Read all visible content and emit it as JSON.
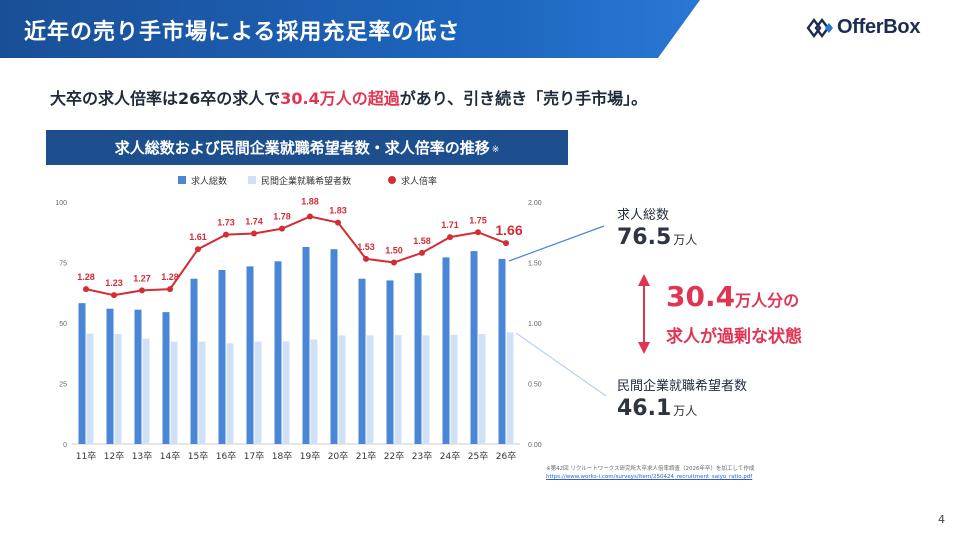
{
  "header": {
    "title": "近年の売り手市場による採用充足率の低さ"
  },
  "logo": {
    "text": "OfferBox"
  },
  "lead": {
    "before": "大卒の求人倍率は26卒の求人で",
    "highlight": "30.4万人の超過",
    "after": "があり、引き続き「売り手市場」。"
  },
  "chart_title": {
    "text": "求人総数および民間企業就職希望者数・求人倍率の推移",
    "note": "※"
  },
  "annotations": {
    "total": {
      "label": "求人総数",
      "value": "76.5",
      "unit": "万人"
    },
    "applicants": {
      "label": "民間企業就職希望者数",
      "value": "46.1",
      "unit": "万人"
    },
    "surplus": {
      "value": "30.4",
      "unit": "万人分の",
      "line2": "求人が過剰な状態"
    }
  },
  "source": {
    "note": "※第42回 リクルートワークス研究所大卒求人倍率調査（2026年卒）を加工して作成",
    "url": "https://www.works-i.com/surveys/item/250424_recruitment_saiyo_ratio.pdf"
  },
  "page_number": "4",
  "colors": {
    "header": "#1d66bf",
    "bar_total": "#4a86d6",
    "bar_applicants": "#d0e1f5",
    "ratio_line": "#d32d35",
    "highlight": "#e03552"
  },
  "chart_data": {
    "type": "bar+line",
    "categories": [
      "11卒",
      "12卒",
      "13卒",
      "14卒",
      "15卒",
      "16卒",
      "17卒",
      "18卒",
      "19卒",
      "20卒",
      "21卒",
      "22卒",
      "23卒",
      "24卒",
      "25卒",
      "26卒"
    ],
    "series": [
      {
        "name": "求人総数",
        "type": "bar",
        "axis": "left",
        "values": [
          58.2,
          55.9,
          55.5,
          54.5,
          68.3,
          71.9,
          73.4,
          75.5,
          81.4,
          80.5,
          68.3,
          67.6,
          70.6,
          77.1,
          79.7,
          76.5
        ]
      },
      {
        "name": "民間企業就職希望者数",
        "type": "bar",
        "axis": "left",
        "values": [
          45.6,
          45.5,
          43.5,
          42.3,
          42.3,
          41.6,
          42.3,
          42.4,
          43.2,
          44.9,
          44.9,
          45.0,
          44.9,
          45.1,
          45.5,
          46.1
        ]
      },
      {
        "name": "求人倍率",
        "type": "line",
        "axis": "right",
        "values": [
          1.28,
          1.23,
          1.27,
          1.28,
          1.61,
          1.73,
          1.74,
          1.78,
          1.88,
          1.83,
          1.53,
          1.5,
          1.58,
          1.71,
          1.75,
          1.66
        ]
      }
    ],
    "ratio_labels": [
      "1.28",
      "1.23",
      "1.27",
      "1.28",
      "1.61",
      "1.73",
      "1.74",
      "1.78",
      "1.88",
      "1.83",
      "1.53",
      "1.50",
      "1.58",
      "1.71",
      "1.75",
      "1.66"
    ],
    "left_axis": {
      "ticks": [
        "0",
        "25",
        "50",
        "75",
        "100"
      ],
      "ylim": [
        0,
        100
      ]
    },
    "right_axis": {
      "ticks": [
        "0.00",
        "0.50",
        "1.00",
        "1.50",
        "2.00"
      ],
      "ylim": [
        0,
        2
      ]
    },
    "legend_position": "top",
    "grid": false
  }
}
